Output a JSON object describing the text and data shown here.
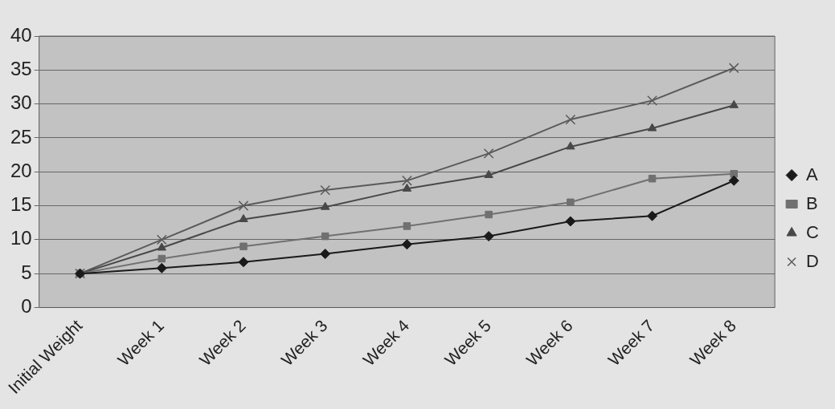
{
  "chart_data": {
    "type": "line",
    "categories": [
      "Initial Weight",
      "Week 1",
      "Week 2",
      "Week 3",
      "Week 4",
      "Week 5",
      "Week 6",
      "Week 7",
      "Week 8"
    ],
    "series": [
      {
        "name": "A",
        "color": "#1a1a1a",
        "marker": "diamond",
        "values": [
          5,
          5.8,
          6.7,
          7.9,
          9.3,
          10.5,
          12.7,
          13.5,
          18.7
        ]
      },
      {
        "name": "B",
        "color": "#707070",
        "marker": "square",
        "values": [
          5,
          7.2,
          9,
          10.5,
          12,
          13.7,
          15.5,
          19,
          19.7
        ]
      },
      {
        "name": "C",
        "color": "#484848",
        "marker": "triangle",
        "values": [
          5,
          8.8,
          13,
          14.8,
          17.5,
          19.5,
          23.7,
          26.4,
          29.8
        ]
      },
      {
        "name": "D",
        "color": "#5a5a5a",
        "marker": "cross",
        "values": [
          5,
          10,
          15,
          17.3,
          18.7,
          22.7,
          27.7,
          30.5,
          35.3
        ]
      }
    ],
    "ylim": [
      0,
      40
    ],
    "yticks": [
      0,
      5,
      10,
      15,
      20,
      25,
      30,
      35,
      40
    ],
    "grid": "y",
    "legend": "right",
    "line_style": "solid"
  }
}
